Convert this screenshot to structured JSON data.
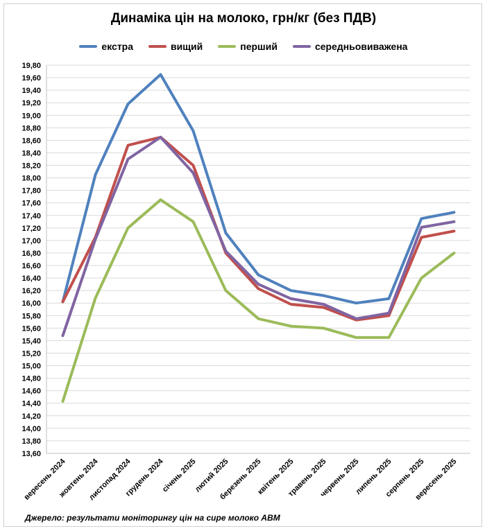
{
  "chart_data": {
    "type": "line",
    "title": "Динаміка цін на молоко, грн/кг (без ПДВ)",
    "xlabel": "",
    "ylabel": "",
    "ylim": [
      13.6,
      19.8
    ],
    "ystep": 0.2,
    "grid": true,
    "legend_position": "top",
    "categories": [
      "вересень 2024",
      "жовтень 2024",
      "листопад 2024",
      "грудень 2024",
      "січень 2025",
      "лютий 2025",
      "березень 2025",
      "квітень 2025",
      "травень 2025",
      "червень 2025",
      "липень 2025",
      "серпень 2025",
      "вересень 2025"
    ],
    "series": [
      {
        "name": "екстра",
        "color": "#4f81bd",
        "values": [
          16.02,
          18.05,
          19.18,
          19.65,
          18.75,
          17.12,
          16.45,
          16.2,
          16.12,
          16.0,
          16.07,
          17.35,
          17.45
        ]
      },
      {
        "name": "вищий",
        "color": "#c0504d",
        "values": [
          16.02,
          17.05,
          18.52,
          18.65,
          18.2,
          16.8,
          16.23,
          15.98,
          15.93,
          15.73,
          15.8,
          17.05,
          17.15
        ]
      },
      {
        "name": "перший",
        "color": "#9bbb59",
        "values": [
          14.43,
          16.08,
          17.2,
          17.65,
          17.3,
          16.2,
          15.75,
          15.63,
          15.6,
          15.45,
          15.45,
          16.4,
          16.8
        ]
      },
      {
        "name": "середньовиважена",
        "color": "#8064a2",
        "values": [
          15.48,
          17.02,
          18.3,
          18.65,
          18.08,
          16.83,
          16.3,
          16.07,
          15.98,
          15.75,
          15.84,
          17.21,
          17.3
        ]
      }
    ]
  },
  "source_note": "Джерело: результати моніторингу цін на сире молоко АВМ"
}
